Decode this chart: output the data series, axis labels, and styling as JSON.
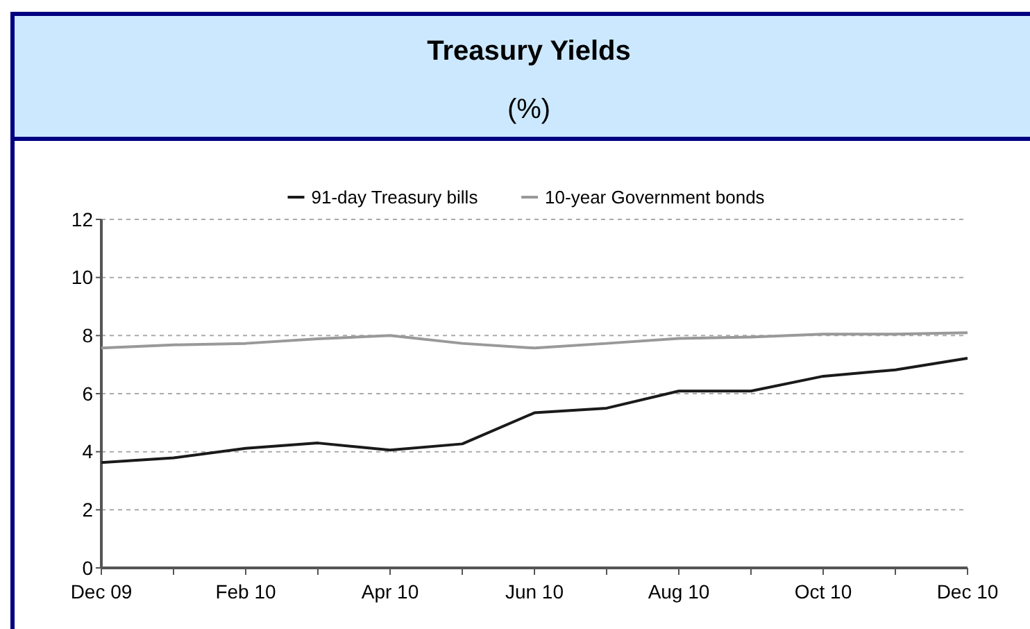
{
  "chart_data": {
    "type": "line",
    "title": "Treasury Yields",
    "subtitle": "(%)",
    "categories": [
      "Dec 09",
      null,
      "Feb 10",
      null,
      "Apr 10",
      null,
      "Jun 10",
      null,
      "Aug 10",
      null,
      "Oct 10",
      null,
      "Dec 10"
    ],
    "series": [
      {
        "name": "91-day Treasury bills",
        "color": "#1a1a1a",
        "values": [
          3.63,
          3.79,
          4.12,
          4.3,
          4.06,
          4.27,
          5.34,
          5.5,
          6.09,
          6.09,
          6.6,
          6.82,
          7.22
        ]
      },
      {
        "name": "10-year Government bonds",
        "color": "#999999",
        "values": [
          7.57,
          7.68,
          7.73,
          7.89,
          8.0,
          7.73,
          7.57,
          7.73,
          7.9,
          7.95,
          8.05,
          8.05,
          8.1
        ]
      }
    ],
    "ylim": [
      0,
      12
    ],
    "yticks": [
      0,
      2,
      4,
      6,
      8,
      10,
      12
    ],
    "grid": "y",
    "legend": "top",
    "marker": "none",
    "line_style": "solid"
  }
}
